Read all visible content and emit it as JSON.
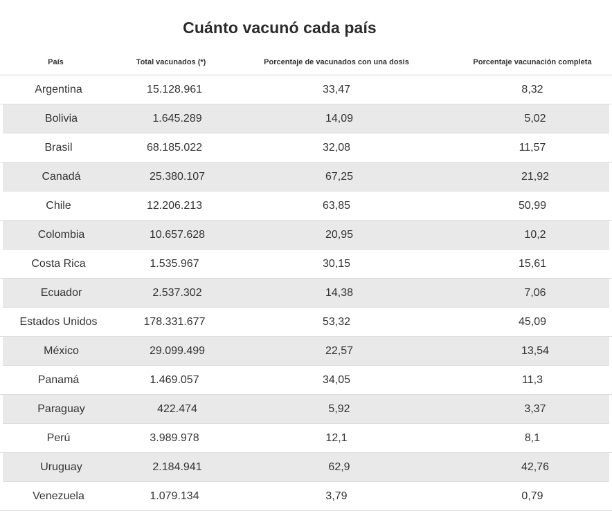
{
  "chart_data": {
    "type": "table",
    "title": "Cuánto vacunó cada país",
    "columns": [
      "País",
      "Total vacunados (*)",
      "Porcentaje de vacunados con una dosis",
      "Porcentaje vacunación completa"
    ],
    "rows": [
      [
        "Argentina",
        "15.128.961",
        "33,47",
        "8,32"
      ],
      [
        "Bolivia",
        "1.645.289",
        "14,09",
        "5,02"
      ],
      [
        "Brasil",
        "68.185.022",
        "32,08",
        "11,57"
      ],
      [
        "Canadá",
        "25.380.107",
        "67,25",
        "21,92"
      ],
      [
        "Chile",
        "12.206.213",
        "63,85",
        "50,99"
      ],
      [
        "Colombia",
        "10.657.628",
        "20,95",
        "10,2"
      ],
      [
        "Costa Rica",
        "1.535.967",
        "30,15",
        "15,61"
      ],
      [
        "Ecuador",
        "2.537.302",
        "14,38",
        "7,06"
      ],
      [
        "Estados Unidos",
        "178.331.677",
        "53,32",
        "45,09"
      ],
      [
        "México",
        "29.099.499",
        "22,57",
        "13,54"
      ],
      [
        "Panamá",
        "1.469.057",
        "34,05",
        "11,3"
      ],
      [
        "Paraguay",
        "422.474",
        "5,92",
        "3,37"
      ],
      [
        "Perú",
        "3.989.978",
        "12,1",
        "8,1"
      ],
      [
        "Uruguay",
        "2.184.941",
        "62,9",
        "42,76"
      ],
      [
        "Venezuela",
        "1.079.134",
        "3,79",
        "0,79"
      ]
    ],
    "row_shading": "alternating",
    "shade_color": "#e9e9e9"
  }
}
